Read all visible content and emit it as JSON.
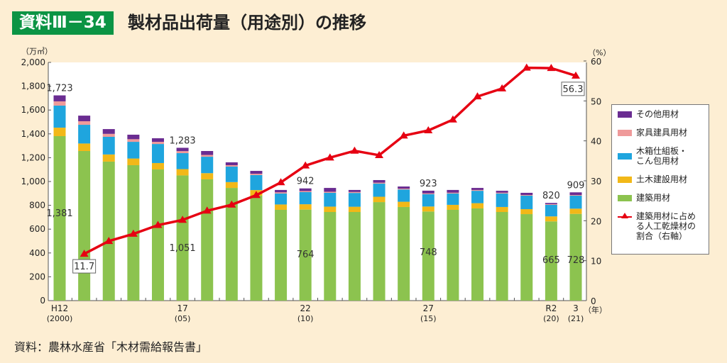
{
  "header": {
    "badge": "資料Ⅲ－34",
    "title": "製材品出荷量（用途別）の推移"
  },
  "source": "資料：農林水産省「木材需給報告書」",
  "chart_data": {
    "type": "bar+line",
    "title": "製材品出荷量（用途別）の推移",
    "ylabel": "（万㎥）",
    "y2label": "（%）",
    "xunit": "（年）",
    "ylim": [
      0,
      2000
    ],
    "y2lim": [
      0,
      60
    ],
    "yticks": [
      "0",
      "200",
      "400",
      "600",
      "800",
      "1,000",
      "1,200",
      "1,400",
      "1,600",
      "1,800",
      "2,000"
    ],
    "y2ticks": [
      "0",
      "10",
      "20",
      "30",
      "40",
      "50",
      "60"
    ],
    "x": [
      2000,
      2001,
      2002,
      2003,
      2004,
      2005,
      2006,
      2007,
      2008,
      2009,
      2010,
      2011,
      2012,
      2013,
      2014,
      2015,
      2016,
      2017,
      2018,
      2019,
      2020,
      2021
    ],
    "xticklabels": [
      {
        "index": 0,
        "top": "H12",
        "bottom": "(2000)"
      },
      {
        "index": 5,
        "top": "17",
        "bottom": "(05)"
      },
      {
        "index": 10,
        "top": "22",
        "bottom": "(10)"
      },
      {
        "index": 15,
        "top": "27",
        "bottom": "(15)"
      },
      {
        "index": 20,
        "top": "R2",
        "bottom": "(20)"
      },
      {
        "index": 21,
        "top": "3",
        "bottom": "(21)"
      }
    ],
    "series": [
      {
        "name": "建築用材",
        "color": "#8cc34f",
        "values": [
          1381,
          1256,
          1167,
          1137,
          1101,
          1051,
          1018,
          946,
          881,
          762,
          764,
          744,
          744,
          827,
          786,
          748,
          762,
          774,
          744,
          726,
          665,
          728
        ]
      },
      {
        "name": "土木建設用材",
        "color": "#f2b818",
        "values": [
          71,
          63,
          60,
          56,
          54,
          53,
          52,
          49,
          47,
          45,
          45,
          45,
          44,
          45,
          44,
          42,
          42,
          44,
          42,
          42,
          42,
          44
        ]
      },
      {
        "name": "木箱仕組板・こん包用材",
        "color": "#1fa5de",
        "values": [
          185,
          157,
          148,
          140,
          160,
          134,
          138,
          130,
          126,
          92,
          102,
          116,
          116,
          110,
          103,
          103,
          95,
          104,
          113,
          113,
          97,
          109
        ]
      },
      {
        "name": "家具建具用材",
        "color": "#ef9a9a",
        "values": [
          36,
          30,
          25,
          22,
          18,
          17,
          15,
          12,
          11,
          10,
          9,
          9,
          8,
          8,
          7,
          7,
          7,
          7,
          7,
          6,
          6,
          6
        ]
      },
      {
        "name": "その他用材",
        "color": "#6a2c91",
        "values": [
          50,
          47,
          40,
          38,
          30,
          28,
          33,
          24,
          24,
          20,
          22,
          32,
          17,
          22,
          18,
          23,
          23,
          17,
          16,
          18,
          10,
          22
        ]
      }
    ],
    "line": {
      "name": "建築用材に占める人工乾燥材の割合（右軸）",
      "color": "#e60012",
      "x_start_index": 1,
      "values": [
        11.7,
        14.9,
        16.7,
        18.9,
        20.2,
        22.5,
        24.0,
        26.4,
        29.6,
        33.8,
        35.8,
        37.5,
        36.4,
        41.3,
        42.6,
        45.3,
        51.1,
        53.1,
        58.3,
        58.2,
        56.3
      ]
    },
    "total_labels": [
      {
        "index": 0,
        "text": "1,723"
      },
      {
        "index": 5,
        "text": "1,283"
      },
      {
        "index": 10,
        "text": "942"
      },
      {
        "index": 15,
        "text": "923"
      },
      {
        "index": 20,
        "text": "820"
      },
      {
        "index": 21,
        "text": "909"
      }
    ],
    "green_labels": [
      {
        "index": 0,
        "text": "1,381"
      },
      {
        "index": 5,
        "text": "1,051"
      },
      {
        "index": 10,
        "text": "764"
      },
      {
        "index": 15,
        "text": "748"
      },
      {
        "index": 20,
        "text": "665"
      },
      {
        "index": 21,
        "text": "728"
      }
    ],
    "ratio_labels": [
      {
        "index": 1,
        "text": "11.7"
      },
      {
        "index": 21,
        "text": "56.3"
      }
    ],
    "legend": [
      "その他用材",
      "家具建具用材",
      "木箱仕組板・こん包用材",
      "土木建設用材",
      "建築用材",
      "建築用材に占める人工乾燥材の割合（右軸）"
    ],
    "legend_lines": {
      "box": [
        "木箱仕組板・",
        "こん包用材"
      ],
      "ratio": [
        "建築用材に占め",
        "る人工乾燥材の",
        "割合（右軸）"
      ]
    }
  }
}
